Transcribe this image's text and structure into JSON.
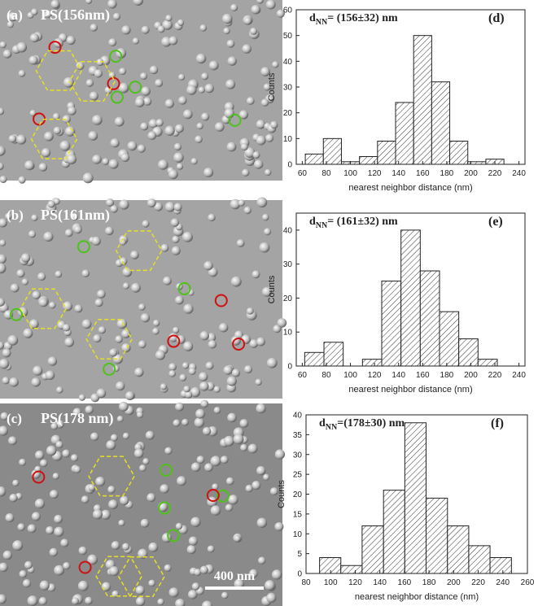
{
  "images": [
    {
      "label": "(a)",
      "title": "PS(156nm)"
    },
    {
      "label": "(b)",
      "title": "PS(161nm)"
    },
    {
      "label": "(c)",
      "title": "PS(178 nm)",
      "scale_bar": "400 nm"
    }
  ],
  "chart_data": [
    {
      "type": "histogram",
      "panel": "(d)",
      "annotation": {
        "symbol": "d",
        "subscript": "NN",
        "text": "= (156±32) nm"
      },
      "x_label": "nearest neighbor distance (nm)",
      "y_label": "Counts",
      "bins": [
        62.5,
        77.5,
        92.5,
        107.5,
        122.5,
        137.5,
        152.5,
        167.5,
        182.5,
        197.5,
        212.5,
        227.5
      ],
      "values": [
        4,
        10,
        1,
        3,
        9,
        24,
        50,
        32,
        9,
        1,
        2
      ],
      "xlim": [
        55,
        245
      ],
      "xticks": [
        60,
        80,
        100,
        120,
        140,
        160,
        180,
        200,
        220,
        240
      ],
      "ylim": [
        0,
        60
      ],
      "yticks": [
        0,
        10,
        20,
        30,
        40,
        50,
        60
      ]
    },
    {
      "type": "histogram",
      "panel": "(e)",
      "annotation": {
        "symbol": "d",
        "subscript": "NN",
        "text": "= (161±32) nm"
      },
      "x_label": "nearest neighbor distance (nm)",
      "y_label": "Counts",
      "bins": [
        62,
        78,
        94,
        110,
        126,
        142,
        158,
        174,
        190,
        206,
        222
      ],
      "values": [
        4,
        7,
        0,
        2,
        25,
        40,
        28,
        16,
        8,
        2
      ],
      "xlim": [
        55,
        245
      ],
      "xticks": [
        60,
        80,
        100,
        120,
        140,
        160,
        180,
        200,
        220,
        240
      ],
      "ylim": [
        0,
        45
      ],
      "yticks": [
        0,
        10,
        20,
        30,
        40
      ]
    },
    {
      "type": "histogram",
      "panel": "(f)",
      "annotation": {
        "symbol": "d",
        "subscript": "NN",
        "text": "=(178±30) nm"
      },
      "x_label": "nearest neighbor distance (nm)",
      "y_label": "Counts",
      "bins": [
        91,
        108.3,
        125.6,
        143,
        160.3,
        177.6,
        195,
        212.3,
        229.6,
        247
      ],
      "values": [
        4,
        2,
        12,
        21,
        38,
        19,
        12,
        7,
        4
      ],
      "xlim": [
        80,
        260
      ],
      "xticks": [
        80,
        100,
        120,
        140,
        160,
        180,
        200,
        220,
        240,
        260
      ],
      "ylim": [
        0,
        40
      ],
      "yticks": [
        0,
        5,
        10,
        15,
        20,
        25,
        30,
        35,
        40
      ]
    }
  ]
}
